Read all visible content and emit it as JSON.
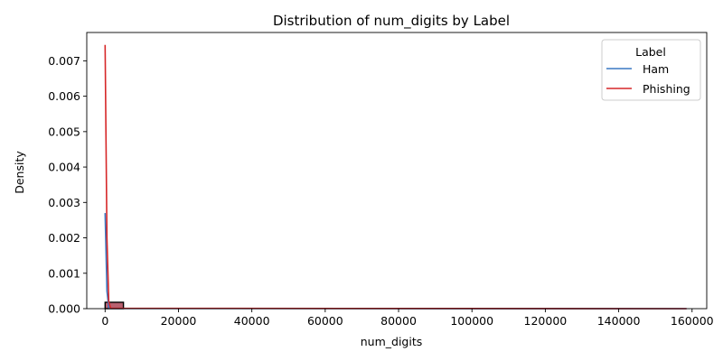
{
  "chart_data": {
    "type": "area",
    "title": "Distribution of num_digits by Label",
    "xlabel": "num_digits",
    "ylabel": "Density",
    "xlim": [
      -5000,
      164000
    ],
    "ylim": [
      0,
      0.0078
    ],
    "xticks": [
      0,
      20000,
      40000,
      60000,
      80000,
      100000,
      120000,
      140000,
      160000
    ],
    "xtick_labels": [
      "0",
      "20000",
      "40000",
      "60000",
      "80000",
      "100000",
      "120000",
      "140000",
      "160000"
    ],
    "yticks": [
      0,
      0.001,
      0.002,
      0.003,
      0.004,
      0.005,
      0.006,
      0.007
    ],
    "ytick_labels": [
      "0.000",
      "0.001",
      "0.002",
      "0.003",
      "0.004",
      "0.005",
      "0.006",
      "0.007"
    ],
    "grid": false,
    "legend": {
      "title": "Label",
      "placement": "top-right"
    },
    "histogram": {
      "bin_edges": [
        0,
        5000
      ],
      "density": 0.00018,
      "fill_color": "#b05060",
      "edge_color": "#000000"
    },
    "series": [
      {
        "name": "Ham",
        "color": "#3a78c3",
        "x": [
          0,
          500,
          1000,
          1500,
          158500
        ],
        "y": [
          0.0027,
          0.0005,
          3e-05,
          5e-06,
          0.0
        ]
      },
      {
        "name": "Phishing",
        "color": "#d62728",
        "x": [
          0,
          500,
          1000,
          1500,
          158500
        ],
        "y": [
          0.00745,
          0.002,
          0.0002,
          1e-05,
          0.0
        ]
      }
    ]
  }
}
